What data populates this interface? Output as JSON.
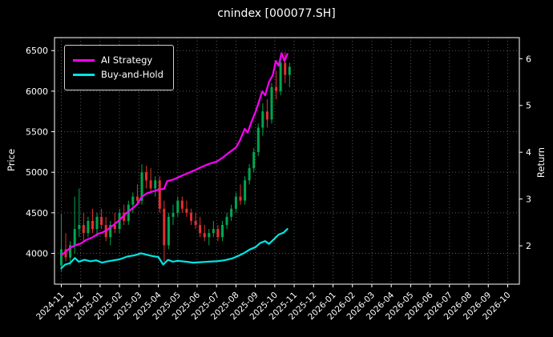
{
  "title": "cnindex [000077.SH]",
  "legend": {
    "ai": "AI Strategy",
    "bh": "Buy-and-Hold"
  },
  "chart_data": {
    "type": "candlestick+line",
    "title": "cnindex [000077.SH]",
    "grid": true,
    "background": "#000000",
    "x_unit": "months since 2024-11",
    "xlim": [
      -0.35,
      23.6
    ],
    "x_ticks": [
      0,
      1,
      2,
      3,
      4,
      5,
      6,
      7,
      8,
      9,
      10,
      11,
      12,
      13,
      14,
      15,
      16,
      17,
      18,
      19,
      20,
      21,
      22,
      23
    ],
    "x_ticklabels": [
      "2024-11",
      "2024-12",
      "2025-01",
      "2025-02",
      "2025-03",
      "2025-04",
      "2025-05",
      "2025-06",
      "2025-07",
      "2025-08",
      "2025-09",
      "2025-10",
      "2025-11",
      "2025-12",
      "2026-01",
      "2026-02",
      "2026-03",
      "2026-04",
      "2026-05",
      "2026-06",
      "2026-07",
      "2026-08",
      "2026-09",
      "2026-10"
    ],
    "price_axis": {
      "label": "Price",
      "ticks": [
        4000,
        4500,
        5000,
        5500,
        6000,
        6500
      ],
      "lim": [
        3620,
        6660
      ]
    },
    "return_axis": {
      "label": "Return",
      "ticks": [
        2,
        3,
        4,
        5,
        6
      ],
      "lim": [
        1.18,
        6.45
      ]
    },
    "candles": {
      "up_color": "#00a650",
      "down_color": "#e03131",
      "columns": [
        "t",
        "open",
        "high",
        "low",
        "close"
      ],
      "data": [
        [
          0.0,
          3850,
          4480,
          3780,
          4050
        ],
        [
          0.23,
          4050,
          4250,
          3900,
          3950
        ],
        [
          0.46,
          3950,
          4150,
          3850,
          4100
        ],
        [
          0.69,
          4100,
          4700,
          4000,
          4300
        ],
        [
          0.92,
          4300,
          4800,
          4200,
          4350
        ],
        [
          1.15,
          4350,
          4500,
          4150,
          4250
        ],
        [
          1.38,
          4250,
          4450,
          4200,
          4400
        ],
        [
          1.61,
          4400,
          4550,
          4250,
          4300
        ],
        [
          1.84,
          4300,
          4500,
          4200,
          4450
        ],
        [
          2.07,
          4450,
          4550,
          4300,
          4350
        ],
        [
          2.3,
          4350,
          4450,
          4150,
          4200
        ],
        [
          2.53,
          4200,
          4400,
          4100,
          4350
        ],
        [
          2.76,
          4350,
          4500,
          4250,
          4300
        ],
        [
          3.0,
          4300,
          4550,
          4250,
          4500
        ],
        [
          3.23,
          4500,
          4600,
          4350,
          4400
        ],
        [
          3.46,
          4400,
          4650,
          4350,
          4600
        ],
        [
          3.69,
          4600,
          4750,
          4500,
          4700
        ],
        [
          3.92,
          4700,
          4850,
          4600,
          4650
        ],
        [
          4.15,
          4650,
          5100,
          4600,
          5000
        ],
        [
          4.38,
          5000,
          5080,
          4800,
          4900
        ],
        [
          4.61,
          4900,
          5050,
          4750,
          4800
        ],
        [
          4.84,
          4800,
          4950,
          4700,
          4900
        ],
        [
          5.07,
          4900,
          4950,
          4500,
          4550
        ],
        [
          5.3,
          4550,
          4650,
          3900,
          4100
        ],
        [
          5.53,
          4100,
          4500,
          4050,
          4450
        ],
        [
          5.76,
          4450,
          4600,
          4350,
          4500
        ],
        [
          6.0,
          4500,
          4700,
          4450,
          4650
        ],
        [
          6.23,
          4650,
          4700,
          4500,
          4550
        ],
        [
          6.46,
          4550,
          4650,
          4450,
          4500
        ],
        [
          6.69,
          4500,
          4550,
          4350,
          4400
        ],
        [
          6.92,
          4400,
          4500,
          4300,
          4350
        ],
        [
          7.15,
          4350,
          4450,
          4200,
          4250
        ],
        [
          7.38,
          4250,
          4350,
          4150,
          4200
        ],
        [
          7.61,
          4200,
          4300,
          4100,
          4250
        ],
        [
          7.84,
          4250,
          4400,
          4200,
          4300
        ],
        [
          8.07,
          4300,
          4350,
          4150,
          4200
        ],
        [
          8.3,
          4200,
          4400,
          4150,
          4350
        ],
        [
          8.53,
          4350,
          4500,
          4300,
          4450
        ],
        [
          8.76,
          4450,
          4600,
          4400,
          4550
        ],
        [
          9.0,
          4550,
          4750,
          4500,
          4700
        ],
        [
          9.23,
          4700,
          4850,
          4600,
          4650
        ],
        [
          9.46,
          4650,
          4950,
          4600,
          4900
        ],
        [
          9.69,
          4900,
          5100,
          4850,
          5050
        ],
        [
          9.92,
          5050,
          5300,
          5000,
          5250
        ],
        [
          10.15,
          5250,
          5600,
          5200,
          5550
        ],
        [
          10.38,
          5550,
          5850,
          5450,
          5750
        ],
        [
          10.61,
          5750,
          5900,
          5550,
          5650
        ],
        [
          10.84,
          5650,
          6100,
          5600,
          6050
        ],
        [
          11.07,
          6050,
          6250,
          5900,
          6000
        ],
        [
          11.3,
          6000,
          6400,
          5950,
          6350
        ],
        [
          11.53,
          6350,
          6480,
          6100,
          6200
        ],
        [
          11.76,
          6200,
          6350,
          6050,
          6300
        ]
      ]
    },
    "series": [
      {
        "name": "AI Strategy",
        "color": "#ff00ff",
        "axis": "return",
        "x": [
          0,
          0.25,
          0.5,
          0.8,
          1.0,
          1.3,
          1.6,
          1.9,
          2.1,
          2.4,
          2.7,
          3.0,
          3.3,
          3.6,
          3.9,
          4.15,
          4.4,
          4.7,
          5.0,
          5.3,
          5.45,
          5.8,
          6.1,
          6.5,
          6.9,
          7.2,
          7.6,
          8.0,
          8.3,
          8.6,
          9.0,
          9.2,
          9.45,
          9.6,
          9.8,
          10.0,
          10.2,
          10.35,
          10.5,
          10.7,
          10.9,
          11.05,
          11.2,
          11.35,
          11.5,
          11.65
        ],
        "y": [
          1.8,
          1.88,
          1.97,
          2.02,
          2.05,
          2.13,
          2.18,
          2.26,
          2.28,
          2.35,
          2.45,
          2.55,
          2.68,
          2.78,
          2.88,
          3.05,
          3.12,
          3.16,
          3.2,
          3.22,
          3.38,
          3.42,
          3.48,
          3.55,
          3.62,
          3.68,
          3.75,
          3.8,
          3.88,
          3.98,
          4.1,
          4.25,
          4.5,
          4.42,
          4.65,
          4.85,
          5.1,
          5.3,
          5.22,
          5.5,
          5.65,
          5.95,
          5.85,
          6.12,
          5.95,
          6.1
        ]
      },
      {
        "name": "Buy-and-Hold",
        "color": "#00e5e5",
        "axis": "return",
        "x": [
          0,
          0.2,
          0.45,
          0.7,
          0.9,
          1.2,
          1.5,
          1.8,
          2.1,
          2.4,
          2.7,
          3.0,
          3.4,
          3.8,
          4.1,
          4.4,
          4.7,
          5.0,
          5.25,
          5.5,
          5.75,
          6.0,
          6.4,
          6.8,
          7.2,
          7.6,
          8.0,
          8.4,
          8.8,
          9.1,
          9.4,
          9.7,
          10.0,
          10.25,
          10.5,
          10.7,
          10.95,
          11.2,
          11.45,
          11.65
        ],
        "y": [
          1.52,
          1.6,
          1.63,
          1.74,
          1.66,
          1.7,
          1.67,
          1.69,
          1.64,
          1.67,
          1.69,
          1.71,
          1.77,
          1.8,
          1.84,
          1.81,
          1.78,
          1.76,
          1.6,
          1.7,
          1.66,
          1.68,
          1.66,
          1.64,
          1.65,
          1.66,
          1.67,
          1.69,
          1.73,
          1.78,
          1.84,
          1.92,
          1.97,
          2.06,
          2.1,
          2.04,
          2.14,
          2.24,
          2.28,
          2.36
        ]
      }
    ]
  }
}
